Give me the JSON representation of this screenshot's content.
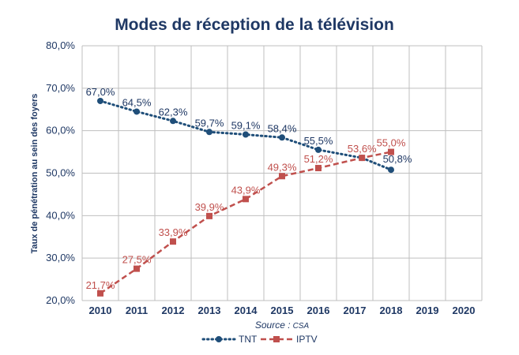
{
  "chart_data": {
    "type": "line",
    "title": "Modes de réception de la télévision",
    "ylabel": "Taux de pénétration au sein des foyers",
    "xlabel": "",
    "source_label": "Source :",
    "source_name": "CSA",
    "categories": [
      "2010",
      "2011",
      "2012",
      "2013",
      "2014",
      "2015",
      "2016",
      "2017",
      "2018",
      "2019",
      "2020"
    ],
    "ylim": [
      20,
      80
    ],
    "yticks": [
      20,
      30,
      40,
      50,
      60,
      70,
      80
    ],
    "ytick_labels": [
      "20,0%",
      "30,0%",
      "40,0%",
      "50,0%",
      "60,0%",
      "70,0%",
      "80,0%"
    ],
    "grid": true,
    "legend_position": "bottom",
    "series": [
      {
        "name": "TNT",
        "color": "#1F4E79",
        "line_style": "dotted",
        "marker": "circle",
        "x": [
          2010,
          2011,
          2012,
          2013,
          2014,
          2015,
          2016,
          2017.2,
          2018
        ],
        "values": [
          67.0,
          64.5,
          62.3,
          59.7,
          59.1,
          58.4,
          55.5,
          53.6,
          50.8
        ],
        "labels": [
          "67,0%",
          "64,5%",
          "62,3%",
          "59,7%",
          "59,1%",
          "58,4%",
          "55,5%",
          "",
          "50,8%"
        ]
      },
      {
        "name": "IPTV",
        "color": "#C0504D",
        "line_style": "dashed",
        "marker": "square",
        "x": [
          2010,
          2011,
          2012,
          2013,
          2014,
          2015,
          2016,
          2017.2,
          2018
        ],
        "values": [
          21.7,
          27.5,
          33.9,
          39.9,
          43.9,
          49.3,
          51.2,
          53.6,
          55.0
        ],
        "labels": [
          "21,7%",
          "27,5%",
          "33,9%",
          "39,9%",
          "43,9%",
          "49,3%",
          "51,2%",
          "53,6%",
          "55,0%"
        ]
      }
    ]
  }
}
